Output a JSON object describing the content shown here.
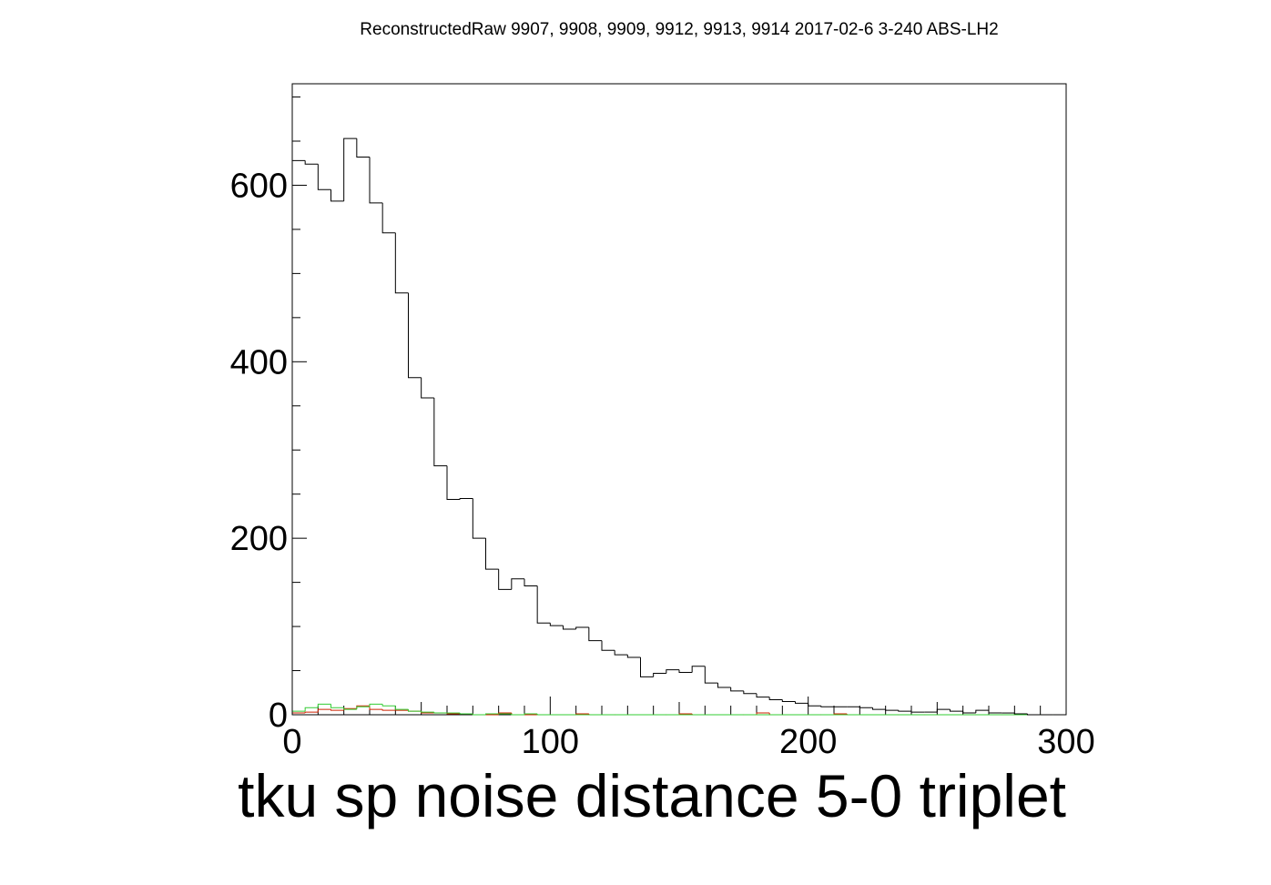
{
  "chart_data": {
    "type": "histogram",
    "title": "ReconstructedRaw 9907, 9908, 9909, 9912, 9913, 9914 2017-02-6 3-240 ABS-LH2",
    "xlabel": "tku sp noise distance 5-0 triplet",
    "ylabel": "",
    "xlim": [
      0,
      300
    ],
    "ylim": [
      0,
      715
    ],
    "bin_width": 5,
    "x_ticks": [
      "0",
      "100",
      "200",
      "300"
    ],
    "y_ticks": [
      "0",
      "200",
      "400",
      "600"
    ],
    "x_tick_values": [
      0,
      100,
      200,
      300
    ],
    "y_tick_values": [
      0,
      200,
      400,
      600
    ],
    "grid": false,
    "colors": {
      "black": "#000000",
      "red": "#cc2200",
      "green": "#33cc33"
    },
    "series": [
      {
        "color": "black",
        "bin_edges_start": 0,
        "values": [
          628,
          624,
          595,
          582,
          653,
          632,
          580,
          546,
          478,
          382,
          359,
          282,
          244,
          245,
          200,
          165,
          142,
          154,
          146,
          104,
          101,
          97,
          99,
          84,
          73,
          68,
          65,
          43,
          47,
          51,
          48,
          55,
          36,
          31,
          27,
          24,
          20,
          17,
          15,
          13,
          10,
          9,
          9,
          9,
          8,
          6,
          5,
          4,
          3,
          3,
          6,
          4,
          2,
          5,
          2,
          2,
          1,
          0,
          0,
          0
        ]
      },
      {
        "color": "red",
        "bin_edges_start": 0,
        "values": [
          2,
          3,
          6,
          5,
          7,
          10,
          6,
          5,
          5,
          4,
          2,
          2,
          1,
          1,
          0,
          0,
          2,
          0,
          0,
          0,
          0,
          0,
          1,
          0,
          0,
          0,
          0,
          0,
          0,
          0,
          1,
          0,
          0,
          0,
          0,
          0,
          2,
          0,
          0,
          0,
          0,
          0,
          1,
          0,
          0,
          0,
          0,
          0,
          0,
          0,
          0,
          0,
          0,
          0,
          0,
          0,
          0,
          0,
          0,
          0
        ]
      },
      {
        "color": "green",
        "bin_edges_start": 0,
        "values": [
          4,
          8,
          12,
          8,
          6,
          9,
          12,
          10,
          6,
          4,
          3,
          2,
          2,
          1,
          0,
          1,
          1,
          0,
          1,
          0,
          0,
          0,
          0,
          0,
          0,
          0,
          0,
          0,
          0,
          0,
          0,
          0,
          0,
          0,
          0,
          0,
          0,
          0,
          0,
          0,
          0,
          0,
          0,
          0,
          0,
          0,
          0,
          0,
          0,
          0,
          0,
          0,
          0,
          0,
          0,
          0,
          0,
          0,
          0,
          0
        ]
      }
    ]
  }
}
